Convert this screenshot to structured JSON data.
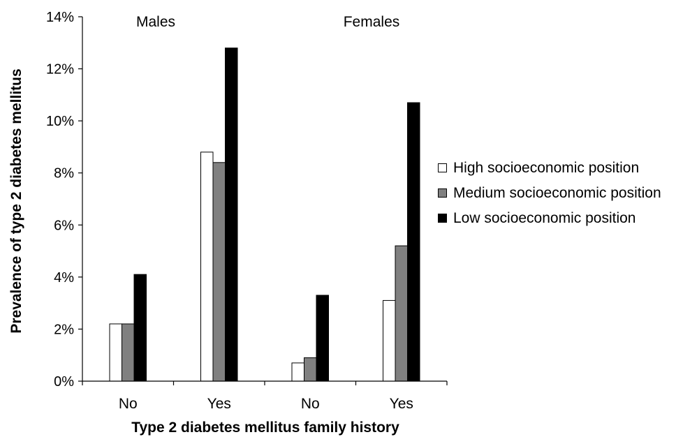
{
  "chart_data": {
    "type": "bar",
    "ylabel": "Prevalence of type 2 diabetes mellitus",
    "xlabel": "Type 2 diabetes mellitus family history",
    "ylim": [
      0,
      14
    ],
    "yticks": [
      "0%",
      "2%",
      "4%",
      "6%",
      "8%",
      "10%",
      "12%",
      "14%"
    ],
    "groups": [
      {
        "name": "Males",
        "categories": [
          "No",
          "Yes"
        ]
      },
      {
        "name": "Females",
        "categories": [
          "No",
          "Yes"
        ]
      }
    ],
    "series": [
      {
        "name": "High socioeconomic position",
        "color": "#ffffff",
        "values": [
          2.2,
          8.8,
          0.7,
          3.1
        ]
      },
      {
        "name": "Medium socioeconomic position",
        "color": "#808080",
        "values": [
          2.2,
          8.4,
          0.9,
          5.2
        ]
      },
      {
        "name": "Low socioeconomic position",
        "color": "#000000",
        "values": [
          4.1,
          12.8,
          3.3,
          10.7
        ]
      }
    ],
    "grid": false,
    "legend_position": "right"
  }
}
